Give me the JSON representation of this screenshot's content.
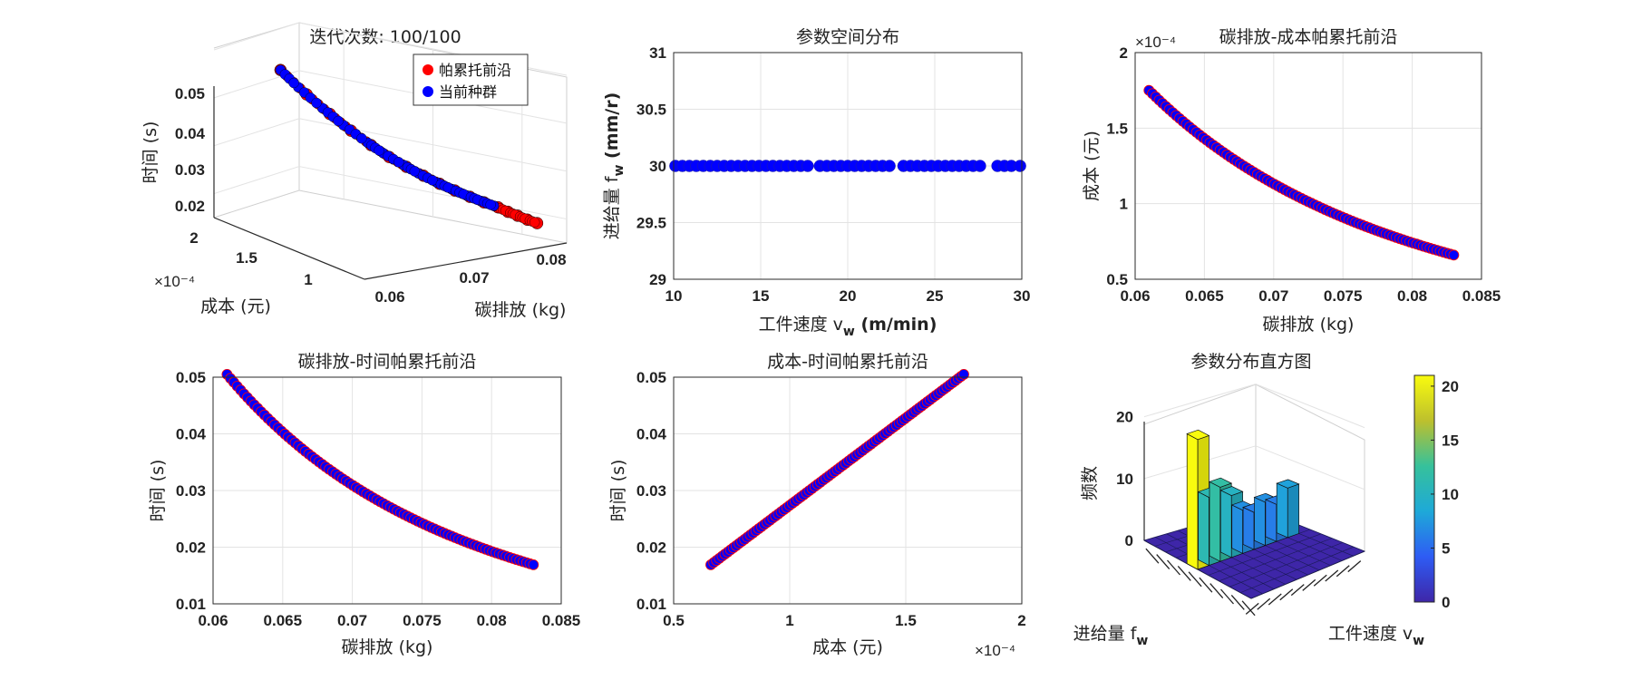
{
  "chart_data": [
    {
      "id": "p1",
      "type": "scatter3d",
      "title": "迭代次数: 100/100",
      "xlabel": "碳排放 (kg)",
      "ylabel": "成本 (元)",
      "zlabel": "时间 (s)",
      "x_ticks": [
        "0.06",
        "0.07",
        "0.08"
      ],
      "y_ticks": [
        "1",
        "1.5",
        "2"
      ],
      "y_exponent": "×10⁻⁴",
      "z_ticks": [
        "0.02",
        "0.03",
        "0.04",
        "0.05"
      ],
      "xlim": [
        0.055,
        0.085
      ],
      "ylim": [
        0.5,
        2.0
      ],
      "zlim": [
        0.015,
        0.05
      ],
      "legend": {
        "position": "top-right",
        "entries": [
          {
            "label": "帕累托前沿",
            "color": "#ff0000"
          },
          {
            "label": "当前种群",
            "color": "#0000ff"
          }
        ]
      },
      "series": [
        {
          "name": "帕累托前沿",
          "color": "#ff0000",
          "points": [
            [
              0.061,
              1.74,
              0.0497
            ],
            [
              0.0625,
              1.58,
              0.0452
            ],
            [
              0.064,
              1.45,
              0.0415
            ],
            [
              0.0655,
              1.34,
              0.0383
            ],
            [
              0.067,
              1.24,
              0.0355
            ],
            [
              0.0685,
              1.16,
              0.0331
            ],
            [
              0.07,
              1.09,
              0.0311
            ],
            [
              0.0715,
              1.02,
              0.0293
            ],
            [
              0.073,
              0.96,
              0.0276
            ],
            [
              0.0745,
              0.91,
              0.0261
            ],
            [
              0.076,
              0.86,
              0.0247
            ],
            [
              0.0775,
              0.82,
              0.0234
            ],
            [
              0.079,
              0.78,
              0.0222
            ],
            [
              0.08,
              0.75,
              0.0212
            ],
            [
              0.081,
              0.72,
              0.0203
            ],
            [
              0.082,
              0.69,
              0.0194
            ],
            [
              0.083,
              0.66,
              0.0186
            ]
          ]
        },
        {
          "name": "当前种群",
          "color": "#0000ff",
          "points": [
            [
              0.061,
              1.74,
              0.0497
            ],
            [
              0.062,
              1.63,
              0.0465
            ],
            [
              0.0635,
              1.49,
              0.0426
            ],
            [
              0.065,
              1.38,
              0.0393
            ],
            [
              0.0668,
              1.26,
              0.0359
            ],
            [
              0.068,
              1.19,
              0.0339
            ],
            [
              0.0698,
              1.1,
              0.0314
            ],
            [
              0.071,
              1.04,
              0.0298
            ],
            [
              0.0728,
              0.97,
              0.0278
            ],
            [
              0.0742,
              0.92,
              0.0264
            ],
            [
              0.0758,
              0.87,
              0.0249
            ],
            [
              0.0772,
              0.83,
              0.0237
            ],
            [
              0.0785,
              0.79,
              0.0226
            ]
          ]
        }
      ]
    },
    {
      "id": "p2",
      "type": "scatter",
      "title": "参数空间分布",
      "xlabel": "工件速度 v",
      "xlabel_sub": "w",
      "xlabel_unit": " (m/min)",
      "ylabel": "进给量 f",
      "ylabel_sub": "w",
      "ylabel_unit": " (mm/r)",
      "xlim": [
        10,
        30
      ],
      "ylim": [
        29,
        31
      ],
      "x_ticks": [
        10,
        15,
        20,
        25,
        30
      ],
      "y_ticks": [
        29,
        29.5,
        30,
        30.5,
        31
      ],
      "y_value": 30,
      "x": [
        10.1,
        10.5,
        10.9,
        11.3,
        11.7,
        12.1,
        12.5,
        12.9,
        13.3,
        13.7,
        14.1,
        14.5,
        14.9,
        15.3,
        15.7,
        16.1,
        16.5,
        16.9,
        17.3,
        17.7,
        18.4,
        18.8,
        19.2,
        19.6,
        20.0,
        20.4,
        20.8,
        21.2,
        21.6,
        22.0,
        22.4,
        23.2,
        23.6,
        24.0,
        24.4,
        24.8,
        25.2,
        25.6,
        26.0,
        26.4,
        26.8,
        27.2,
        27.6,
        28.6,
        29.0,
        29.4,
        29.9
      ],
      "color": "#0000ff"
    },
    {
      "id": "p3",
      "type": "scatter",
      "title": "碳排放-成本帕累托前沿",
      "xlabel": "碳排放 (kg)",
      "ylabel": "成本 (元)",
      "xlim": [
        0.06,
        0.085
      ],
      "ylim": [
        0.5,
        2.0
      ],
      "x_ticks": [
        "0.06",
        "0.065",
        "0.07",
        "0.075",
        "0.08",
        "0.085"
      ],
      "y_ticks": [
        "0.5",
        "1",
        "1.5",
        "2"
      ],
      "y_exponent": "×10⁻⁴",
      "x_range": [
        0.061,
        0.083
      ],
      "y_range": [
        1.75,
        0.66
      ],
      "color": "#0000ff",
      "edge_color": "#ff0000"
    },
    {
      "id": "p4",
      "type": "scatter",
      "title": "碳排放-时间帕累托前沿",
      "xlabel": "碳排放 (kg)",
      "ylabel": "时间 (s)",
      "xlim": [
        0.06,
        0.085
      ],
      "ylim": [
        0.01,
        0.05
      ],
      "x_ticks": [
        "0.06",
        "0.065",
        "0.07",
        "0.075",
        "0.08",
        "0.085"
      ],
      "y_ticks": [
        "0.01",
        "0.02",
        "0.03",
        "0.04",
        "0.05"
      ],
      "x_range": [
        0.061,
        0.083
      ],
      "y_range": [
        0.0505,
        0.0169
      ],
      "color": "#0000ff",
      "edge_color": "#ff0000"
    },
    {
      "id": "p5",
      "type": "scatter",
      "title": "成本-时间帕累托前沿",
      "xlabel": "成本 (元)",
      "ylabel": "时间 (s)",
      "xlim": [
        0.5,
        2.0
      ],
      "ylim": [
        0.01,
        0.05
      ],
      "x_ticks": [
        "0.5",
        "1",
        "1.5",
        "2"
      ],
      "y_ticks": [
        "0.01",
        "0.02",
        "0.03",
        "0.04",
        "0.05"
      ],
      "x_exponent": "×10⁻⁴",
      "x_range": [
        0.66,
        1.75
      ],
      "y_range": [
        0.0169,
        0.0505
      ],
      "color": "#0000ff",
      "edge_color": "#ff0000"
    },
    {
      "id": "p6",
      "type": "bar3d",
      "title": "参数分布直方图",
      "xlabel": "工件速度 v",
      "xlabel_sub": "w",
      "ylabel": "进给量 f",
      "ylabel_sub": "w",
      "zlabel": "频数",
      "z_ticks": [
        0,
        10,
        20
      ],
      "zlim": [
        0,
        22
      ],
      "colorbar": {
        "min": 0,
        "max": 21,
        "ticks": [
          0,
          5,
          10,
          15,
          20
        ],
        "colormap": "parula"
      },
      "bins_x": 10,
      "bins_y": 10,
      "nonzero_row": 4,
      "counts": [
        21,
        11,
        12,
        10,
        7,
        6,
        7,
        6,
        8,
        0
      ]
    }
  ]
}
